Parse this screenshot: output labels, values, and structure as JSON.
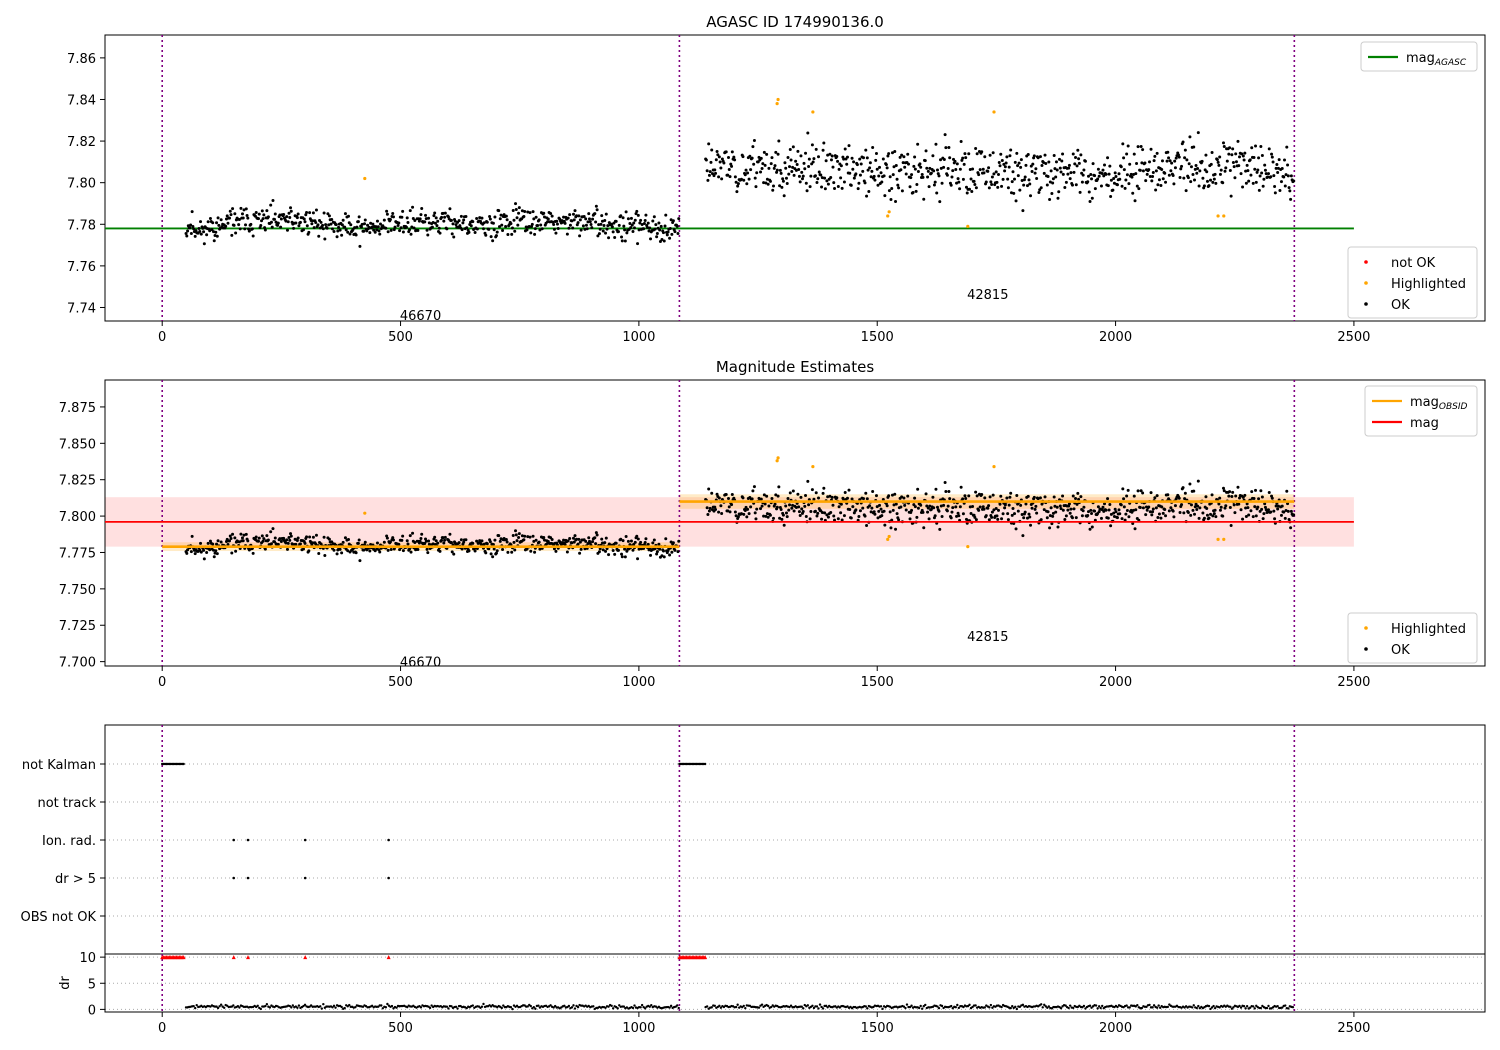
{
  "figure": {
    "title_top": "AGASC ID 174990136.0",
    "title_middle": "Magnitude Estimates"
  },
  "chart_data": [
    {
      "type": "scatter",
      "title": "AGASC ID 174990136.0",
      "xlim": [
        -120,
        2775
      ],
      "ylim": [
        7.7335,
        7.871
      ],
      "xticks": [
        0,
        500,
        1000,
        1500,
        2000,
        2500
      ],
      "yticks": [
        7.74,
        7.76,
        7.78,
        7.8,
        7.82,
        7.84,
        7.86
      ],
      "ytick_labels": [
        "7.74",
        "7.76",
        "7.78",
        "7.80",
        "7.82",
        "7.84",
        "7.86"
      ],
      "vlines": [
        0,
        1085,
        2375
      ],
      "hline": {
        "name": "mag_AGASC",
        "value": 7.778,
        "x_range": [
          -120,
          2500
        ],
        "color": "#008000"
      },
      "segments": [
        {
          "x_range": [
            50,
            1085
          ],
          "level": 7.779,
          "amp": 0.0045,
          "wobble": 0.003,
          "seed": 11
        },
        {
          "x_range": [
            1140,
            2375
          ],
          "level": 7.81,
          "amp": 0.0085,
          "wobble": 0.006,
          "seed": 23
        }
      ],
      "highlighted": [
        [
          425,
          7.802
        ],
        [
          1290,
          7.838
        ],
        [
          1292,
          7.84
        ],
        [
          1365,
          7.834
        ],
        [
          1522,
          7.784
        ],
        [
          1525,
          7.786
        ],
        [
          1690,
          7.779
        ],
        [
          1745,
          7.834
        ],
        [
          2215,
          7.784
        ],
        [
          2227,
          7.784
        ]
      ],
      "obsid_labels": [
        {
          "x": 500,
          "y": 7.7365,
          "text": "46670"
        },
        {
          "x": 1690,
          "y": 7.7465,
          "text": "42815"
        }
      ],
      "legend_upper": [
        {
          "label": "mag",
          "sub": "AGASC",
          "color": "#008000"
        }
      ],
      "legend_lower": [
        {
          "label": "not OK",
          "color": "#ff0000"
        },
        {
          "label": "Highlighted",
          "color": "#ffa500"
        },
        {
          "label": "OK",
          "color": "#000000"
        }
      ]
    },
    {
      "type": "scatter",
      "title": "Magnitude Estimates",
      "xlim": [
        -120,
        2775
      ],
      "ylim": [
        7.697,
        7.8935
      ],
      "xticks": [
        0,
        500,
        1000,
        1500,
        2000,
        2500
      ],
      "yticks": [
        7.7,
        7.725,
        7.75,
        7.775,
        7.8,
        7.825,
        7.85,
        7.875
      ],
      "ytick_labels": [
        "7.700",
        "7.725",
        "7.750",
        "7.775",
        "7.800",
        "7.825",
        "7.850",
        "7.875"
      ],
      "vlines": [
        0,
        1085,
        2375
      ],
      "mag": {
        "value": 7.796,
        "band": [
          7.779,
          7.813
        ],
        "x_range": [
          -120,
          2500
        ],
        "color": "#ff0000"
      },
      "mag_obsid": [
        {
          "x_range": [
            0,
            1085
          ],
          "value": 7.779,
          "band": [
            7.776,
            7.782
          ]
        },
        {
          "x_range": [
            1085,
            2375
          ],
          "value": 7.81,
          "band": [
            7.805,
            7.815
          ]
        }
      ],
      "obsid_labels": [
        {
          "x": 500,
          "y": 7.7,
          "text": "46670"
        },
        {
          "x": 1690,
          "y": 7.7175,
          "text": "42815"
        }
      ],
      "legend_upper": [
        {
          "label": "mag",
          "sub": "OBSID",
          "color": "#ffa500"
        },
        {
          "label": "mag",
          "sub": "",
          "color": "#ff0000"
        }
      ],
      "legend_lower": [
        {
          "label": "Highlighted",
          "color": "#ffa500"
        },
        {
          "label": "OK",
          "color": "#000000"
        }
      ]
    },
    {
      "type": "scatter",
      "title": "",
      "xlim": [
        -120,
        2775
      ],
      "xticks": [
        0,
        500,
        1000,
        1500,
        2000,
        2500
      ],
      "flag_rows": [
        "not Kalman",
        "not track",
        "Ion. rad.",
        "dr > 5",
        "OBS not OK"
      ],
      "flags": {
        "not Kalman": [
          [
            0,
            45
          ],
          [
            1085,
            1140
          ]
        ],
        "Ion. rad.": [
          150,
          180,
          300,
          475
        ],
        "dr > 5": [
          150,
          180,
          300,
          475
        ]
      },
      "dr": {
        "ylabel": "dr",
        "ylim": [
          -0.5,
          10.6
        ],
        "yticks": [
          0,
          5,
          10
        ],
        "dr_gt5_x": [
          150,
          180,
          300,
          475
        ],
        "dr_gt5_ranges": [
          [
            0,
            45
          ],
          [
            1085,
            1140
          ]
        ],
        "segments": [
          [
            50,
            1085
          ],
          [
            1140,
            2375
          ]
        ],
        "typical": 0.5
      }
    }
  ]
}
